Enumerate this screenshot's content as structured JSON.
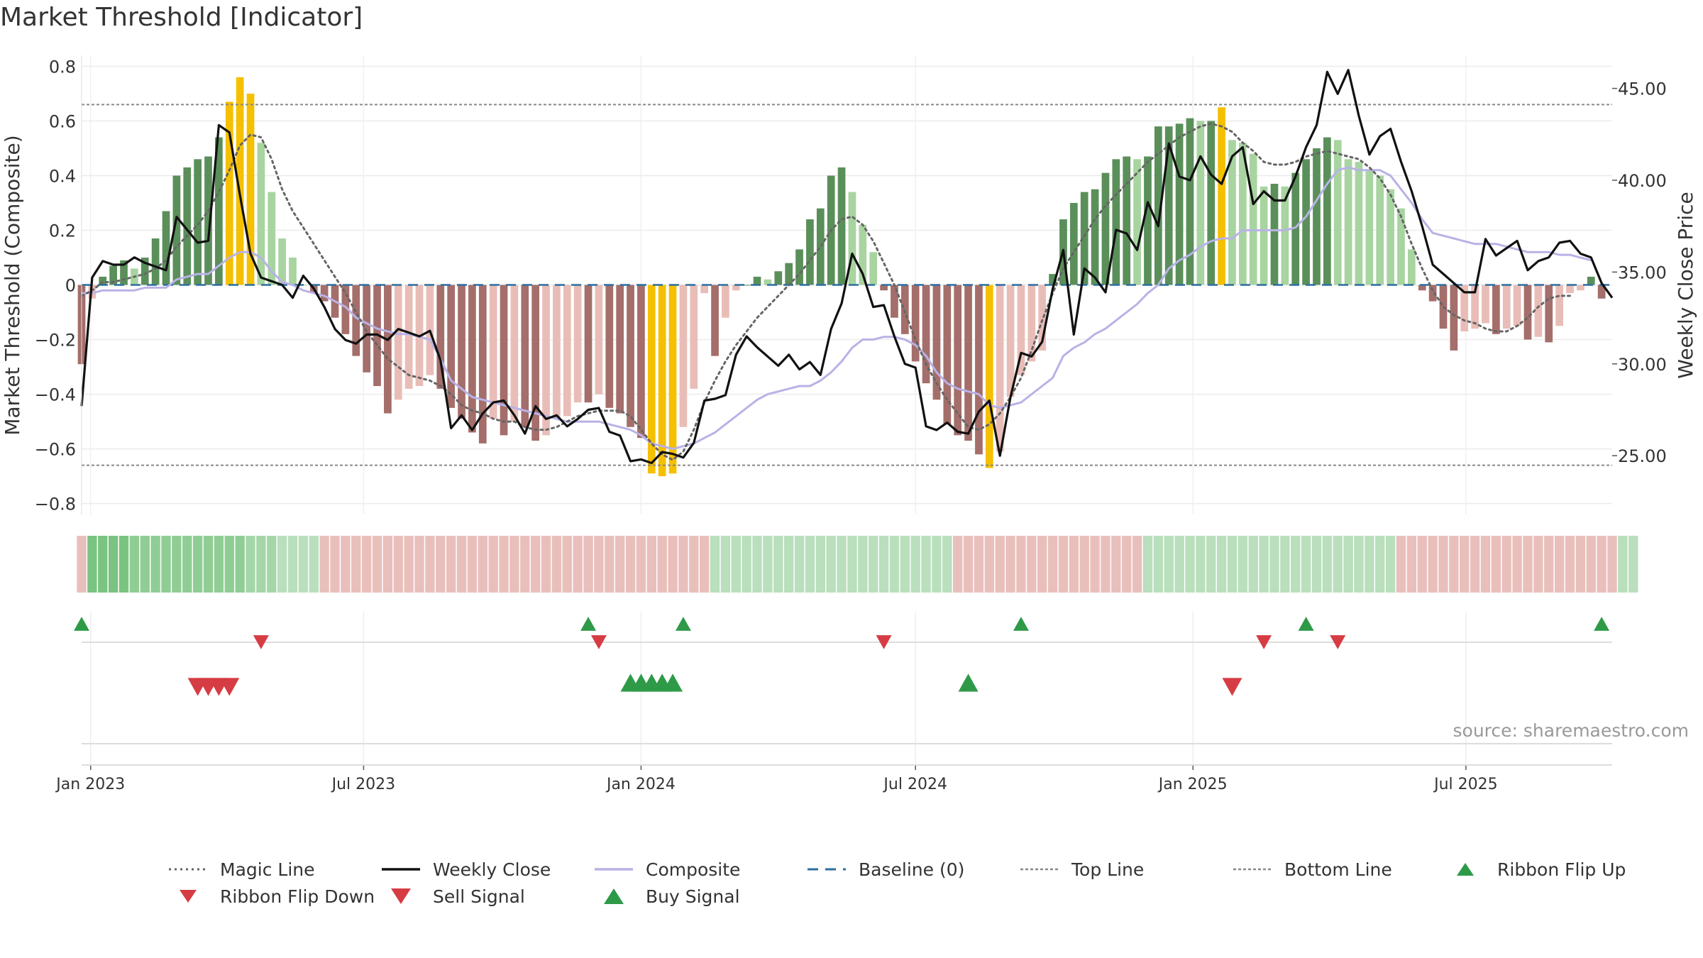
{
  "colors": {
    "bull_dark": "#5a8f5a",
    "bull_light": "#a8d4a0",
    "bear_dark": "#a46e6a",
    "bear_light": "#e9bdb7",
    "extreme": "#f5c000",
    "weekly_close": "#111111",
    "composite": "#b9b2e6",
    "magic_line": "#666666",
    "baseline": "#2e6e9e",
    "reference": "#888888",
    "ribbon_bull": "#74c07a",
    "ribbon_bear": "#e2a9a5",
    "signal_up": "#2e9a48",
    "signal_down": "#d63c43"
  },
  "chart_data": {
    "type": "bar",
    "title": "Market Threshold [Indicator]",
    "ylabel": "Market Threshold (Composite)",
    "ylabel_right": "Weekly Close Price",
    "ylim": [
      -0.84,
      0.84
    ],
    "ylim_right": [
      21.8,
      46.8
    ],
    "yticks": [
      "0.8",
      "0.6",
      "0.4",
      "0.2",
      "0",
      "−0.2",
      "−0.4",
      "−0.6",
      "−0.8"
    ],
    "yticks_right": [
      "45.00",
      "40.00",
      "35.00",
      "30.00",
      "25.00"
    ],
    "xticks": [
      "Jan 2023",
      "Jul 2023",
      "Jan 2024",
      "Jul 2024",
      "Jan 2025",
      "Jul 2025"
    ],
    "x_start": "2022-12-26",
    "x_end": "2025-10-06",
    "top_line": 0.66,
    "bottom_line": -0.66,
    "grid": true,
    "source_note": "source: sharemaestro.com",
    "bars": [
      -0.29,
      -0.05,
      0.03,
      0.07,
      0.09,
      0.06,
      0.1,
      0.17,
      0.27,
      0.4,
      0.43,
      0.46,
      0.47,
      0.54,
      0.67,
      0.76,
      0.7,
      0.52,
      0.34,
      0.17,
      0.1,
      0.0,
      -0.03,
      -0.06,
      -0.12,
      -0.18,
      -0.26,
      -0.32,
      -0.37,
      -0.47,
      -0.42,
      -0.38,
      -0.37,
      -0.33,
      -0.38,
      -0.45,
      -0.49,
      -0.54,
      -0.58,
      -0.49,
      -0.55,
      -0.5,
      -0.52,
      -0.57,
      -0.55,
      -0.49,
      -0.48,
      -0.43,
      -0.43,
      -0.4,
      -0.45,
      -0.47,
      -0.52,
      -0.56,
      -0.69,
      -0.7,
      -0.69,
      -0.52,
      -0.38,
      -0.03,
      -0.26,
      -0.12,
      -0.02,
      0.0,
      0.03,
      0.02,
      0.05,
      0.08,
      0.13,
      0.24,
      0.28,
      0.4,
      0.43,
      0.34,
      0.22,
      0.12,
      -0.02,
      -0.12,
      -0.18,
      -0.28,
      -0.36,
      -0.42,
      -0.51,
      -0.55,
      -0.57,
      -0.62,
      -0.67,
      -0.61,
      -0.41,
      -0.33,
      -0.28,
      -0.24,
      0.04,
      0.24,
      0.3,
      0.34,
      0.35,
      0.41,
      0.46,
      0.47,
      0.46,
      0.47,
      0.58,
      0.58,
      0.59,
      0.61,
      0.6,
      0.6,
      0.65,
      0.53,
      0.52,
      0.48,
      0.36,
      0.37,
      0.36,
      0.41,
      0.46,
      0.5,
      0.54,
      0.53,
      0.46,
      0.45,
      0.42,
      0.4,
      0.35,
      0.28,
      0.13,
      -0.02,
      -0.06,
      -0.16,
      -0.24,
      -0.17,
      -0.16,
      -0.14,
      -0.18,
      -0.16,
      -0.15,
      -0.2,
      -0.19,
      -0.21,
      -0.15,
      -0.03,
      -0.02,
      0.03,
      -0.05
    ],
    "series": [
      {
        "name": "Magic Line",
        "values": [
          -0.04,
          -0.02,
          0.01,
          0.01,
          0.02,
          0.03,
          0.04,
          0.06,
          0.09,
          0.14,
          0.18,
          0.22,
          0.27,
          0.34,
          0.42,
          0.51,
          0.55,
          0.54,
          0.46,
          0.35,
          0.27,
          0.21,
          0.15,
          0.09,
          0.03,
          -0.03,
          -0.1,
          -0.17,
          -0.22,
          -0.27,
          -0.3,
          -0.33,
          -0.34,
          -0.35,
          -0.37,
          -0.4,
          -0.44,
          -0.46,
          -0.47,
          -0.49,
          -0.5,
          -0.5,
          -0.52,
          -0.53,
          -0.53,
          -0.52,
          -0.5,
          -0.48,
          -0.47,
          -0.46,
          -0.46,
          -0.46,
          -0.48,
          -0.53,
          -0.58,
          -0.62,
          -0.64,
          -0.61,
          -0.53,
          -0.43,
          -0.35,
          -0.28,
          -0.22,
          -0.17,
          -0.12,
          -0.08,
          -0.04,
          0.0,
          0.04,
          0.09,
          0.14,
          0.2,
          0.24,
          0.25,
          0.22,
          0.16,
          0.08,
          0.0,
          -0.1,
          -0.2,
          -0.29,
          -0.36,
          -0.42,
          -0.47,
          -0.52,
          -0.53,
          -0.51,
          -0.47,
          -0.41,
          -0.34,
          -0.24,
          -0.13,
          -0.03,
          0.06,
          0.12,
          0.18,
          0.24,
          0.29,
          0.33,
          0.37,
          0.41,
          0.45,
          0.48,
          0.51,
          0.54,
          0.56,
          0.58,
          0.59,
          0.58,
          0.56,
          0.52,
          0.49,
          0.45,
          0.44,
          0.44,
          0.45,
          0.47,
          0.48,
          0.49,
          0.48,
          0.47,
          0.46,
          0.43,
          0.39,
          0.33,
          0.25,
          0.15,
          0.06,
          -0.02,
          -0.08,
          -0.11,
          -0.13,
          -0.14,
          -0.16,
          -0.17,
          -0.17,
          -0.15,
          -0.12,
          -0.08,
          -0.05,
          -0.04,
          -0.04
        ]
      },
      {
        "name": "Weekly Close",
        "values": [
          27.7,
          34.7,
          35.6,
          35.4,
          35.4,
          35.8,
          35.5,
          35.3,
          35.1,
          38.0,
          37.3,
          36.6,
          36.7,
          43.0,
          42.6,
          39.2,
          36.0,
          34.7,
          34.5,
          34.3,
          33.6,
          34.8,
          34.1,
          33.1,
          31.9,
          31.3,
          31.1,
          31.6,
          31.6,
          31.3,
          31.9,
          31.7,
          31.5,
          31.8,
          30.2,
          26.5,
          27.2,
          26.4,
          27.3,
          27.9,
          28.0,
          27.2,
          26.2,
          27.7,
          27.0,
          27.2,
          26.6,
          27.0,
          27.5,
          27.6,
          26.3,
          26.1,
          24.7,
          24.8,
          24.6,
          25.2,
          25.1,
          24.9,
          25.7,
          28.0,
          28.1,
          28.3,
          30.5,
          31.5,
          30.9,
          30.4,
          29.9,
          30.5,
          29.7,
          30.1,
          29.4,
          31.9,
          33.3,
          36.0,
          34.9,
          33.1,
          33.2,
          31.5,
          30.0,
          29.8,
          26.6,
          26.4,
          26.8,
          26.3,
          26.2,
          27.4,
          28.0,
          25.0,
          28.2,
          30.6,
          30.4,
          31.2,
          34.1,
          36.2,
          31.6,
          35.2,
          34.7,
          33.9,
          37.3,
          37.1,
          36.2,
          38.8,
          37.5,
          42.0,
          40.2,
          40.0,
          41.3,
          40.3,
          39.8,
          41.3,
          41.8,
          38.7,
          39.4,
          38.9,
          38.9,
          40.2,
          41.8,
          43.0,
          45.9,
          44.7,
          46.0,
          43.5,
          41.4,
          42.4,
          42.8,
          41.0,
          39.4,
          37.5,
          35.4,
          34.9,
          34.4,
          33.9,
          33.9,
          36.8,
          35.9,
          36.3,
          36.7,
          35.1,
          35.6,
          35.8,
          36.6,
          36.7,
          36.0,
          35.8,
          34.4,
          33.6
        ]
      },
      {
        "name": "Composite",
        "values": [
          -0.03,
          -0.03,
          -0.02,
          -0.02,
          -0.02,
          -0.02,
          -0.01,
          -0.01,
          -0.01,
          0.02,
          0.03,
          0.04,
          0.04,
          0.07,
          0.1,
          0.12,
          0.12,
          0.1,
          0.05,
          0.01,
          0.0,
          -0.02,
          -0.03,
          -0.04,
          -0.06,
          -0.08,
          -0.12,
          -0.14,
          -0.16,
          -0.17,
          -0.18,
          -0.18,
          -0.19,
          -0.2,
          -0.27,
          -0.35,
          -0.38,
          -0.41,
          -0.42,
          -0.43,
          -0.44,
          -0.45,
          -0.46,
          -0.47,
          -0.48,
          -0.49,
          -0.5,
          -0.5,
          -0.5,
          -0.5,
          -0.51,
          -0.52,
          -0.53,
          -0.55,
          -0.58,
          -0.59,
          -0.6,
          -0.59,
          -0.58,
          -0.56,
          -0.54,
          -0.51,
          -0.48,
          -0.45,
          -0.42,
          -0.4,
          -0.39,
          -0.38,
          -0.37,
          -0.37,
          -0.35,
          -0.32,
          -0.28,
          -0.23,
          -0.2,
          -0.2,
          -0.19,
          -0.19,
          -0.2,
          -0.22,
          -0.26,
          -0.32,
          -0.36,
          -0.38,
          -0.39,
          -0.4,
          -0.44,
          -0.45,
          -0.44,
          -0.43,
          -0.4,
          -0.37,
          -0.34,
          -0.26,
          -0.23,
          -0.21,
          -0.18,
          -0.16,
          -0.13,
          -0.1,
          -0.07,
          -0.03,
          0.0,
          0.06,
          0.09,
          0.11,
          0.14,
          0.16,
          0.17,
          0.17,
          0.2,
          0.2,
          0.2,
          0.2,
          0.2,
          0.21,
          0.25,
          0.31,
          0.37,
          0.42,
          0.43,
          0.42,
          0.42,
          0.42,
          0.4,
          0.35,
          0.3,
          0.24,
          0.19,
          0.18,
          0.17,
          0.16,
          0.15,
          0.15,
          0.15,
          0.14,
          0.13,
          0.12,
          0.12,
          0.12,
          0.11,
          0.11,
          0.1,
          0.09
        ]
      },
      {
        "name": "Baseline (0)",
        "values": [
          0
        ]
      },
      {
        "name": "Top Line",
        "values": [
          0.66
        ]
      },
      {
        "name": "Bottom Line",
        "values": [
          -0.66
        ]
      }
    ],
    "ribbon": [
      -1,
      4,
      4,
      4,
      4,
      3,
      3,
      3,
      3,
      3,
      3,
      3,
      3,
      3,
      3,
      3,
      2,
      2,
      2,
      1,
      1,
      1,
      1,
      -1,
      -1,
      -1,
      -1,
      -1,
      -1,
      -1,
      -1,
      -1,
      -1,
      -1,
      -1,
      -1,
      -1,
      -1,
      -1,
      -1,
      -1,
      -1,
      -1,
      -1,
      -1,
      -1,
      -1,
      -1,
      -1,
      -1,
      -1,
      -1,
      -1,
      -1,
      -1,
      -1,
      -1,
      -1,
      -1,
      -1,
      1,
      1,
      1,
      1,
      1,
      1,
      1,
      1,
      1,
      1,
      1,
      1,
      1,
      1,
      1,
      1,
      1,
      1,
      1,
      1,
      1,
      1,
      1,
      -1,
      -1,
      -1,
      -1,
      -1,
      -1,
      -1,
      -1,
      -1,
      -1,
      -1,
      -1,
      -1,
      -1,
      -1,
      -1,
      -1,
      -1,
      1,
      1,
      1,
      1,
      1,
      1,
      1,
      1,
      1,
      1,
      1,
      1,
      1,
      1,
      1,
      1,
      1,
      1,
      1,
      1,
      1,
      1,
      1,
      1,
      -1,
      -1,
      -1,
      -1,
      -1,
      -1,
      -1,
      -1,
      -1,
      -1,
      -1,
      -1,
      -1,
      -1,
      -1,
      -1,
      -1,
      -1,
      -1,
      -1,
      -1,
      1,
      1
    ],
    "signals": {
      "ribbon_flip_up": [
        "2022-12-26",
        "2023-11-27",
        "2024-01-29",
        "2024-09-09",
        "2025-03-17",
        "2025-09-29"
      ],
      "ribbon_flip_down": [
        "2023-04-24",
        "2023-12-04",
        "2024-06-10",
        "2025-02-17",
        "2025-04-07"
      ],
      "sell_signal": [
        "2023-03-13",
        "2023-03-20",
        "2023-03-27",
        "2023-04-03",
        "2025-01-27"
      ],
      "buy_signal": [
        "2023-12-25",
        "2024-01-01",
        "2024-01-08",
        "2024-01-15",
        "2024-01-22",
        "2024-08-05"
      ]
    }
  },
  "legend": {
    "magic_line": "Magic Line",
    "weekly_close": "Weekly Close",
    "composite": "Composite",
    "baseline": "Baseline (0)",
    "top_line": "Top Line",
    "bottom_line": "Bottom Line",
    "ribbon_flip_up": "Ribbon Flip Up",
    "ribbon_flip_down": "Ribbon Flip Down",
    "sell_signal": "Sell Signal",
    "buy_signal": "Buy Signal"
  }
}
